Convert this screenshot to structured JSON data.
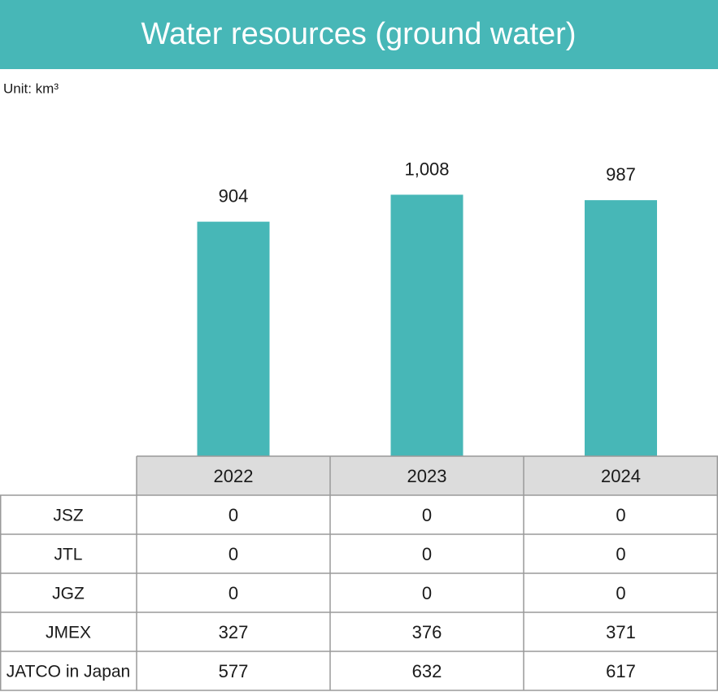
{
  "chart_data": {
    "type": "bar",
    "title": "Water resources (ground water)",
    "unit": "Unit: km³",
    "categories": [
      "2022",
      "2023",
      "2024"
    ],
    "values": [
      904,
      1008,
      987
    ],
    "value_labels": [
      "904",
      "1,008",
      "987"
    ],
    "color": "#47b7b7",
    "table": {
      "rows": [
        {
          "label": "JSZ",
          "values": [
            0,
            0,
            0
          ]
        },
        {
          "label": "JTL",
          "values": [
            0,
            0,
            0
          ]
        },
        {
          "label": "JGZ",
          "values": [
            0,
            0,
            0
          ]
        },
        {
          "label": "JMEX",
          "values": [
            327,
            376,
            371
          ]
        },
        {
          "label": "JATCO in Japan",
          "values": [
            577,
            632,
            617
          ]
        }
      ]
    }
  }
}
